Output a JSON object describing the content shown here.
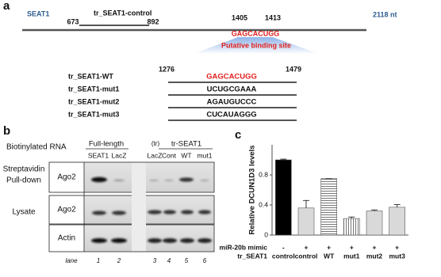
{
  "panel_a": {
    "label": "a",
    "gene": "SEAT1",
    "control_fragment": "tr_SEAT1-control",
    "control_start": 673,
    "control_end": 892,
    "site_start": 1405,
    "site_end": 1413,
    "site_sequence": "GAGCACUGG",
    "length": "2118 nt",
    "site_label": "Putative binding site",
    "tr_start": 1276,
    "tr_end": 1479,
    "constructs": [
      {
        "name": "tr_SEAT1-WT",
        "sequence": "GAGCACUGG"
      },
      {
        "name": "tr_SEAT1-mut1",
        "sequence": "UCUGCGAAA"
      },
      {
        "name": "tr_SEAT1-mut2",
        "sequence": "AGAUGUCCC"
      },
      {
        "name": "tr_SEAT1-mut3",
        "sequence": "CUCAUAGGG"
      }
    ]
  },
  "panel_b": {
    "label": "b",
    "row_title": "Biotinylated RNA",
    "group_full": "Full-length",
    "group_tr": "tr-SEAT1",
    "tr_prefix": "(tr)",
    "lanes": [
      "SEAT1",
      "LacZ",
      "LacZ",
      "Cont",
      "WT",
      "mut1"
    ],
    "pulldown_title": [
      "Streptavidin",
      "Pull-down"
    ],
    "lysate_title": "Lysate",
    "blots": [
      "Ago2",
      "Ago2",
      "Actin"
    ],
    "lane_title": "lane",
    "lane_numbers": [
      1,
      2,
      3,
      4,
      5,
      6
    ]
  },
  "chart_data": {
    "type": "bar",
    "panel_label": "c",
    "ylabel": "Relative DCUN1D3 levels",
    "row_titles": [
      "miR-20b mimic",
      "tr_SEAT1"
    ],
    "mimic": [
      "-",
      "+",
      "+",
      "+",
      "+",
      "+"
    ],
    "categories": [
      "control",
      "control",
      "WT",
      "mut1",
      "mut2",
      "mut3"
    ],
    "values": [
      1.0,
      0.36,
      0.75,
      0.22,
      0.32,
      0.37
    ],
    "errors": [
      0.01,
      0.1,
      0,
      0.02,
      0.015,
      0.035
    ],
    "colors": [
      "#000000",
      "#d9d9d9",
      "#ffffff",
      "#ffffff",
      "#d9d9d9",
      "#d9d9d9"
    ],
    "patterns": [
      "solid",
      "solid",
      "hlines",
      "vlines",
      "solid",
      "solid"
    ],
    "ylim": [
      0,
      1.2
    ],
    "yticks": [
      0,
      0.4,
      0.8
    ]
  }
}
